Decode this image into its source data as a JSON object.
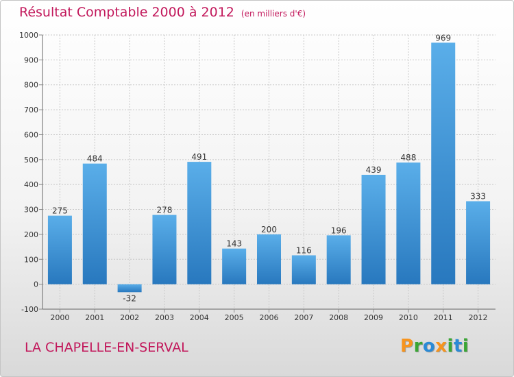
{
  "chart_data": {
    "type": "bar",
    "title": "Résultat Comptable 2000 à 2012",
    "subtitle": "(en milliers d'€)",
    "categories": [
      "2000",
      "2001",
      "2002",
      "2003",
      "2004",
      "2005",
      "2006",
      "2007",
      "2008",
      "2009",
      "2010",
      "2011",
      "2012"
    ],
    "values": [
      275,
      484,
      -32,
      278,
      491,
      143,
      200,
      116,
      196,
      439,
      488,
      969,
      333
    ],
    "ylim": [
      -100,
      1000
    ],
    "yticks": [
      -100,
      0,
      100,
      200,
      300,
      400,
      500,
      600,
      700,
      800,
      900,
      1000
    ],
    "grid": true,
    "xlabel": "",
    "ylabel": "",
    "colors": {
      "bar_top": "#5aaee9",
      "bar_bottom": "#2878be",
      "title": "#c2185b",
      "grid": "#c8c8c8"
    }
  },
  "footer": {
    "city": "LA CHAPELLE-EN-SERVAL",
    "brand": "Proxiti",
    "brand_letters": [
      "P",
      "r",
      "o",
      "x",
      "i",
      "t",
      "i"
    ],
    "brand_colors": [
      "#f7941d",
      "#3aa635",
      "#2a8ad6",
      "#f7941d",
      "#3aa635",
      "#2a8ad6",
      "#3aa635"
    ]
  }
}
